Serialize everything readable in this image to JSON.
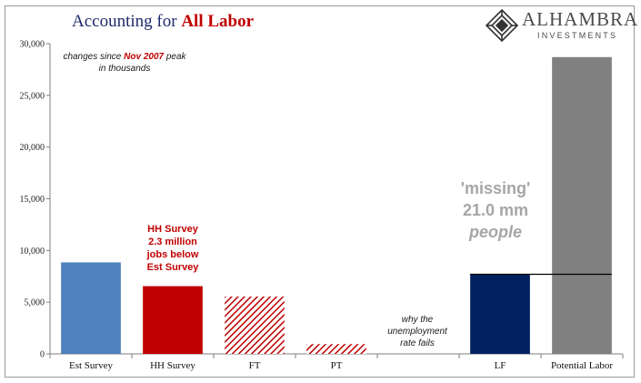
{
  "title": {
    "prefix": "Accounting for ",
    "emph": "All Labor"
  },
  "logo": {
    "name": "ALHAMBRA",
    "sub": "INVESTMENTS"
  },
  "note": {
    "line1_pre": "changes since ",
    "line1_emph": "Nov 2007",
    "line1_post": " peak",
    "line2": "in thousands"
  },
  "annotations": {
    "hh": {
      "l1": "HH Survey",
      "l2": "2.3 million",
      "l3": "jobs below",
      "l4": "Est Survey"
    },
    "missing": {
      "l1": "'missing'",
      "l2": "21.0 mm",
      "l3": "people"
    },
    "unemp": {
      "l1": "why the",
      "l2": "unemployment",
      "l3": "rate fails"
    }
  },
  "colors": {
    "est": "#4f81bd",
    "hh": "#c00000",
    "lf": "#002060",
    "potential": "#808080",
    "hatch": "#c00000"
  },
  "chart_data": {
    "type": "bar",
    "categories": [
      "Est Survey",
      "HH Survey",
      "FT",
      "PT",
      "",
      "LF",
      "Potential Labor"
    ],
    "values": [
      8850,
      6550,
      5550,
      950,
      0,
      7700,
      28700
    ],
    "styles": [
      "solid-blue",
      "solid-red",
      "hatch-red",
      "hatch-red",
      "none",
      "solid-navy",
      "solid-gray"
    ],
    "ylim": [
      0,
      30000
    ],
    "yticks": [
      0,
      5000,
      10000,
      15000,
      20000,
      25000,
      30000
    ],
    "ytick_labels": [
      "0",
      "5,000",
      "10,000",
      "15,000",
      "20,000",
      "25,000",
      "30,000"
    ],
    "reference_line": {
      "value": 7700
    },
    "xlabel": "",
    "ylabel": ""
  }
}
